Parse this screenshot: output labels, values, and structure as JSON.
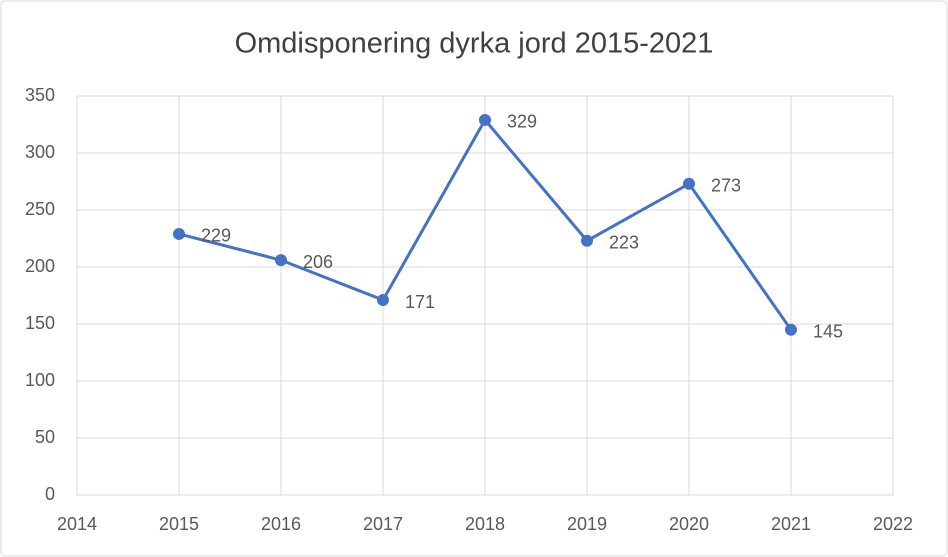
{
  "chart_data": {
    "type": "line",
    "title": "Omdisponering dyrka jord 2015-2021",
    "x": [
      2015,
      2016,
      2017,
      2018,
      2019,
      2020,
      2021
    ],
    "series": [
      {
        "color": "#4472c4",
        "values": [
          229,
          206,
          171,
          329,
          223,
          273,
          145
        ]
      }
    ],
    "xlim": [
      2014,
      2022
    ],
    "xticks": [
      2014,
      2015,
      2016,
      2017,
      2018,
      2019,
      2020,
      2021,
      2022
    ],
    "ylim": [
      0,
      350
    ],
    "yticks": [
      0,
      50,
      100,
      150,
      200,
      250,
      300,
      350
    ],
    "grid": true,
    "data_labels": true
  }
}
